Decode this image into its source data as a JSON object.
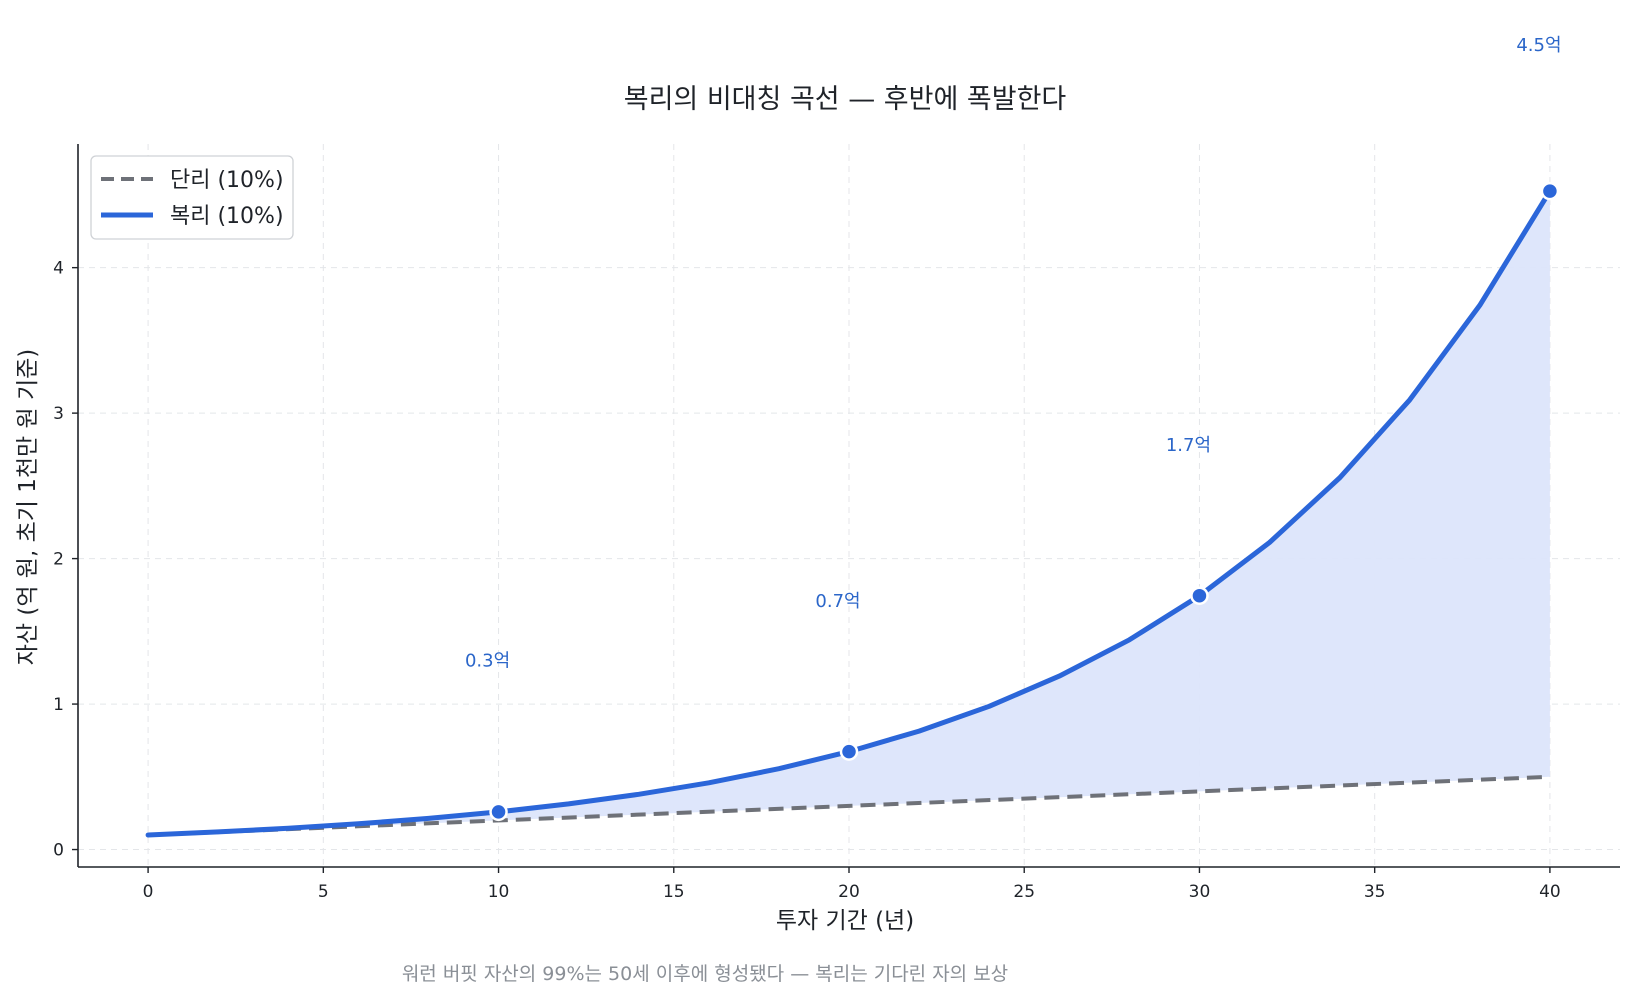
{
  "chart_data": {
    "type": "line",
    "title": "복리의 비대칭 곡선 — 후반에 폭발한다",
    "xlabel": "투자 기간 (년)",
    "ylabel": "자산 (억 원, 초기 1천만 원 기준)",
    "caption": "워런 버핏 자산의 99%는 50세 이후에 형성됐다 — 복리는 기다린 자의 보상",
    "xlim": [
      -2,
      42
    ],
    "ylim": [
      -0.12,
      4.85
    ],
    "x_ticks": [
      0,
      5,
      10,
      15,
      20,
      25,
      30,
      35,
      40
    ],
    "y_ticks": [
      0,
      1,
      2,
      3,
      4
    ],
    "grid": true,
    "legend_position": "top-left",
    "series": [
      {
        "name": "단리 (10%)",
        "style": "dashed",
        "color": "#6e7178",
        "x": [
          0,
          40
        ],
        "y": [
          0.1,
          0.5
        ]
      },
      {
        "name": "복리 (10%)",
        "style": "solid",
        "color": "#2b66d9",
        "x": [
          0,
          2,
          4,
          6,
          8,
          10,
          12,
          14,
          16,
          18,
          20,
          22,
          24,
          26,
          28,
          30,
          32,
          34,
          36,
          38,
          40
        ],
        "y": [
          0.1,
          0.121,
          0.146,
          0.177,
          0.214,
          0.259,
          0.314,
          0.38,
          0.459,
          0.556,
          0.673,
          0.814,
          0.985,
          1.192,
          1.442,
          1.745,
          2.111,
          2.555,
          3.091,
          3.741,
          4.526
        ]
      }
    ],
    "fill_between": {
      "color": "#dce5fb"
    },
    "markers": [
      {
        "x": 10,
        "y": 0.259,
        "label": "0.3억",
        "label_y": 1.3
      },
      {
        "x": 20,
        "y": 0.673,
        "label": "0.7억",
        "label_y": 1.71
      },
      {
        "x": 30,
        "y": 1.745,
        "label": "1.7억",
        "label_y": 2.78
      },
      {
        "x": 40,
        "y": 4.526,
        "label": "4.5억",
        "label_y": 5.53
      }
    ]
  }
}
